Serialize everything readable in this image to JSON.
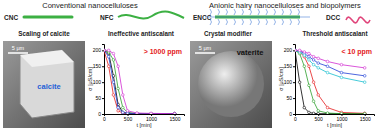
{
  "header": {
    "left_title": "Conventional nanocelluloses",
    "right_title": "Anionic hairy nanocelluloses and biopolymers"
  },
  "materials": [
    "CNC",
    "NFC",
    "ENCC",
    "DCC"
  ],
  "captions": [
    "Scaling of calcite",
    "Ineffective antiscalant",
    "Crystal modifier",
    "Threshold antiscalant"
  ],
  "images": [
    {
      "label": "calcite",
      "scale_bar": "5 μm"
    },
    {
      "label": "vaterite",
      "scale_bar": "5 μm"
    }
  ],
  "chart_data": [
    {
      "type": "line",
      "x_label": "t [min]",
      "y_label": "σ [μS/cm]",
      "annotation": "> 1000 ppm",
      "xlim": [
        0,
        1700
      ],
      "ylim": [
        0,
        220
      ],
      "xticks": [
        0,
        500,
        1000,
        1500
      ],
      "yticks": [
        0,
        50,
        100,
        150,
        200
      ],
      "marker": "circle",
      "x": [
        0,
        100,
        200,
        300,
        400,
        500,
        700,
        1000,
        1500
      ],
      "series": [
        {
          "color": "#000000",
          "values": [
            200,
            190,
            120,
            30,
            5,
            2,
            1,
            1,
            1
          ]
        },
        {
          "color": "#e41a1c",
          "values": [
            200,
            150,
            60,
            10,
            3,
            2,
            1,
            1,
            1
          ]
        },
        {
          "color": "#2ca02c",
          "values": [
            200,
            195,
            170,
            80,
            20,
            5,
            2,
            1,
            1
          ]
        },
        {
          "color": "#1f3fd6",
          "values": [
            200,
            180,
            100,
            20,
            5,
            2,
            1,
            1,
            1
          ]
        },
        {
          "color": "#d12bd1",
          "values": [
            200,
            200,
            190,
            150,
            60,
            10,
            3,
            2,
            1
          ]
        }
      ]
    },
    {
      "type": "line",
      "x_label": "t [min]",
      "y_label": "σ [μS/cm]",
      "annotation": "< 10 ppm",
      "xlim": [
        0,
        1700
      ],
      "ylim": [
        0,
        220
      ],
      "xticks": [
        0,
        500,
        1000,
        1500
      ],
      "yticks": [
        0,
        50,
        100,
        150,
        200
      ],
      "marker": "circle",
      "x": [
        0,
        100,
        200,
        300,
        400,
        500,
        700,
        1000,
        1500
      ],
      "series": [
        {
          "color": "#000000",
          "values": [
            200,
            100,
            20,
            5,
            2,
            1,
            1,
            1,
            1
          ]
        },
        {
          "color": "#e41a1c",
          "values": [
            200,
            195,
            180,
            150,
            100,
            60,
            20,
            5,
            2
          ]
        },
        {
          "color": "#2ca02c",
          "values": [
            200,
            190,
            150,
            90,
            40,
            10,
            3,
            1,
            1
          ]
        },
        {
          "color": "#1f3fd6",
          "values": [
            200,
            198,
            190,
            180,
            170,
            160,
            150,
            130,
            120
          ]
        },
        {
          "color": "#17becf",
          "values": [
            200,
            195,
            185,
            170,
            155,
            145,
            130,
            115,
            100
          ]
        },
        {
          "color": "#d12bd1",
          "values": [
            200,
            200,
            195,
            190,
            180,
            175,
            165,
            155,
            145
          ]
        }
      ]
    }
  ]
}
